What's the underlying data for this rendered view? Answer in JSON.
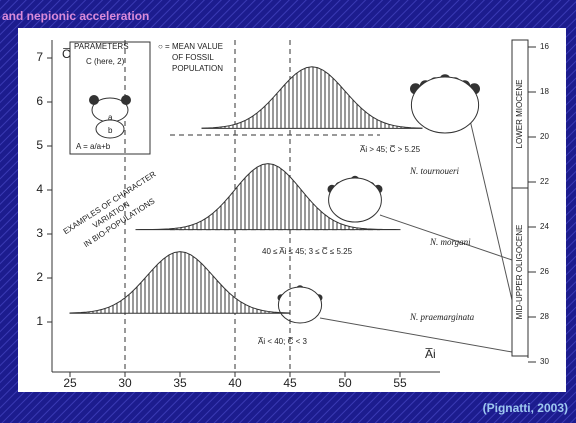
{
  "title": "and nepionic acceleration",
  "citation": "(Pignatti, 2003)",
  "figure": {
    "y_axis_label": "C̅",
    "x_axis_label": "A̅i",
    "y_ticks": [
      1,
      2,
      3,
      4,
      5,
      6,
      7
    ],
    "x_ticks": [
      25,
      30,
      35,
      40,
      45,
      50,
      55
    ],
    "right_ticks": [
      16,
      18,
      20,
      22,
      24,
      26,
      28,
      30
    ],
    "parameters_box": {
      "heading": "PARAMETERS",
      "c_note": "C (here, 2)",
      "a": "a",
      "b": "b",
      "formula": "A = a/a+b"
    },
    "mean_note": [
      "○ = MEAN VALUE",
      "OF FOSSIL",
      "POPULATION"
    ],
    "examples_note": [
      "EXAMPLES OF CHARACTER",
      "VARIATION",
      "IN BIO-POPULATIONS"
    ],
    "conditions": [
      "A̅i > 45;  C̅ > 5.25",
      "40 ≤ A̅i ≤ 45;  3 ≤ C̅ ≤ 5.25",
      "A̅i < 40;  C̅ < 3"
    ],
    "species": [
      "N. tournoueri",
      "N. morgani",
      "N. praemarginata"
    ],
    "epochs": [
      "LOWER MIOCENE",
      "MID-UPPER OLIGOCENE"
    ]
  }
}
